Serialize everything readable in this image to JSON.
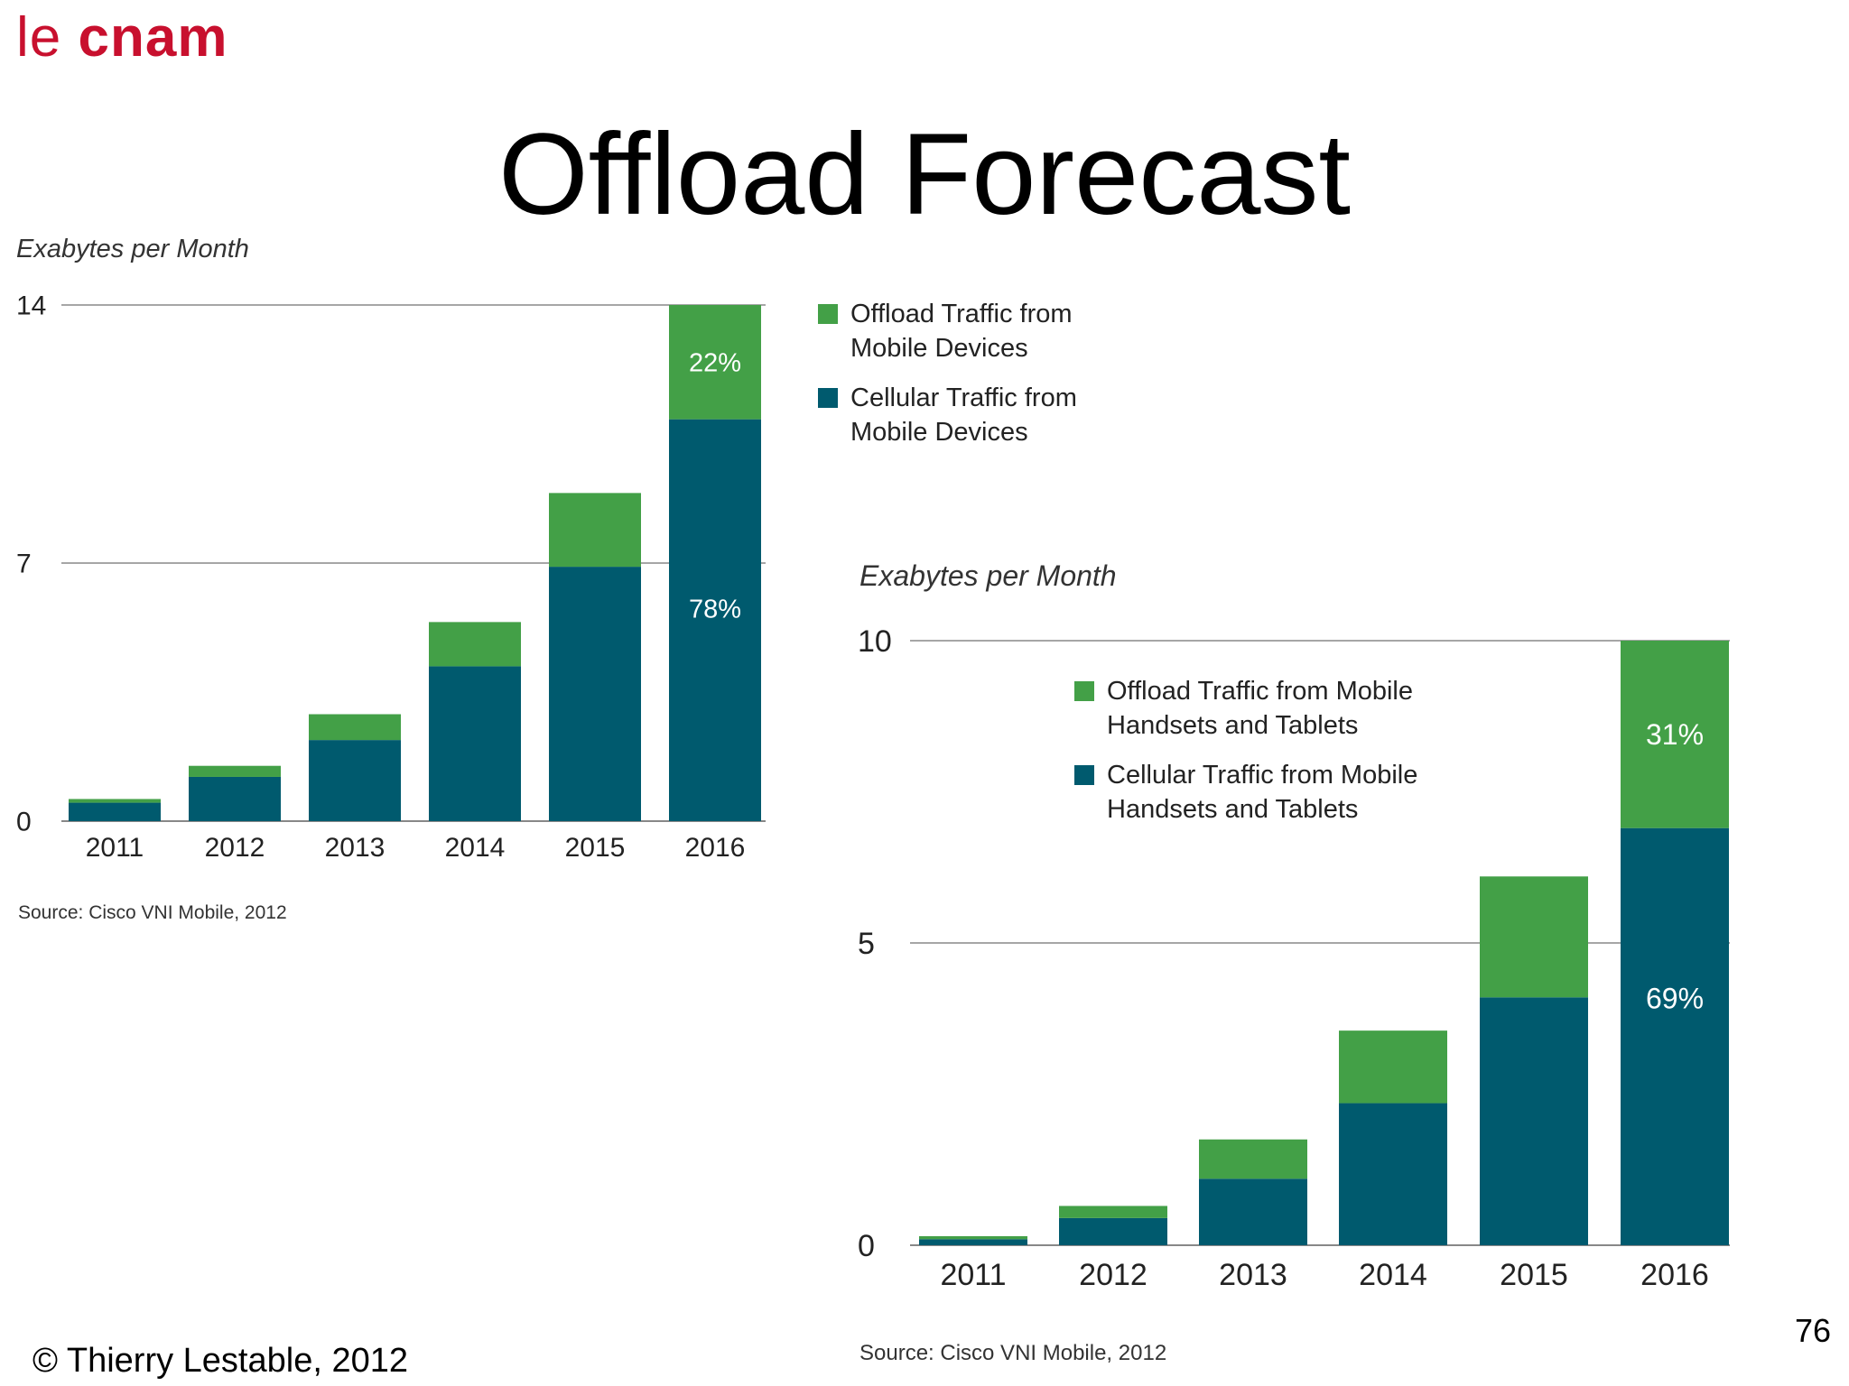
{
  "logo": {
    "prefix": "le ",
    "brand": "cnam"
  },
  "title": "Offload Forecast",
  "footer": {
    "copyright": "© Thierry Lestable, 2012",
    "slide_number": "76"
  },
  "colors": {
    "offload": "#43a047",
    "cellular": "#005a6e",
    "axis": "#888888"
  },
  "chart_data": [
    {
      "type": "bar",
      "stacked": true,
      "ylabel": "Exabytes per Month",
      "ylim": [
        0,
        14
      ],
      "yticks": [
        "0",
        "7",
        "14"
      ],
      "categories": [
        "2011",
        "2012",
        "2013",
        "2014",
        "2015",
        "2016"
      ],
      "series": [
        {
          "name": "Cellular Traffic from\nMobile Devices",
          "values": [
            0.5,
            1.2,
            2.2,
            4.2,
            6.9,
            10.9
          ]
        },
        {
          "name": "Offload Traffic from\nMobile Devices",
          "values": [
            0.1,
            0.3,
            0.7,
            1.2,
            2.0,
            3.1
          ]
        }
      ],
      "legend": "top-right",
      "annotations": {
        "offload_pct": "22%",
        "cellular_pct": "78%"
      },
      "source": "Source: Cisco VNI Mobile, 2012",
      "grid": true
    },
    {
      "type": "bar",
      "stacked": true,
      "ylabel": "Exabytes per Month",
      "ylim": [
        0,
        10
      ],
      "yticks": [
        "0",
        "5",
        "10"
      ],
      "categories": [
        "2011",
        "2012",
        "2013",
        "2014",
        "2015",
        "2016"
      ],
      "series": [
        {
          "name": "Cellular Traffic from Mobile\nHandsets and Tablets",
          "values": [
            0.1,
            0.45,
            1.1,
            2.35,
            4.1,
            6.9
          ]
        },
        {
          "name": "Offload Traffic from Mobile\nHandsets and Tablets",
          "values": [
            0.05,
            0.2,
            0.65,
            1.2,
            2.0,
            3.1
          ]
        }
      ],
      "legend": "top-center",
      "annotations": {
        "offload_pct": "31%",
        "cellular_pct": "69%"
      },
      "source": "Source: Cisco VNI Mobile, 2012",
      "grid": true
    }
  ]
}
